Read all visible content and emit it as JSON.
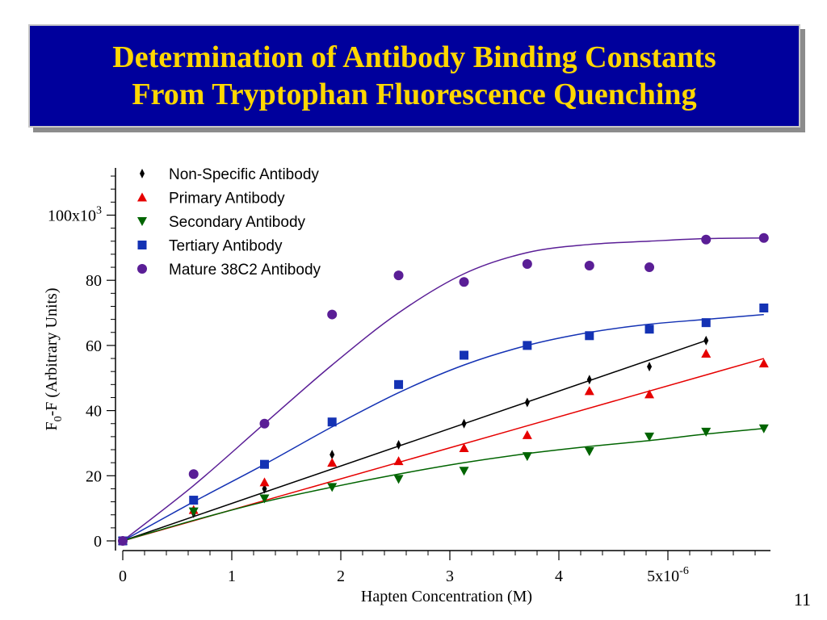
{
  "title": {
    "line1": "Determination of Antibody Binding Constants",
    "line2": "From Tryptophan Fluorescence Quenching"
  },
  "page_number": "11",
  "colors": {
    "title_bg": "#00009c",
    "title_text": "#ffd700",
    "non_specific": "#000000",
    "primary": "#e60000",
    "secondary": "#006400",
    "tertiary": "#1432b4",
    "mature": "#5a1e96"
  },
  "chart_data": {
    "type": "scatter",
    "xlabel": "Hapten Concentration (M)",
    "ylabel_main": "F",
    "ylabel_sub": "0",
    "ylabel_rest": "-F (Arbitrary Units)",
    "xlim": [
      0,
      5.9
    ],
    "ylim": [
      0,
      112
    ],
    "x_ticks": [
      {
        "value": 0,
        "label": "0"
      },
      {
        "value": 1,
        "label": "1"
      },
      {
        "value": 2,
        "label": "2"
      },
      {
        "value": 3,
        "label": "3"
      },
      {
        "value": 4,
        "label": "4"
      },
      {
        "value": 5,
        "label": "5x10",
        "exp": "-6"
      }
    ],
    "y_ticks": [
      {
        "value": 0,
        "label": "0"
      },
      {
        "value": 20,
        "label": "20"
      },
      {
        "value": 40,
        "label": "40"
      },
      {
        "value": 60,
        "label": "60"
      },
      {
        "value": 80,
        "label": "80"
      },
      {
        "value": 100,
        "label": "100x10",
        "exp": "3"
      }
    ],
    "grid": false,
    "legend_position": "top-left",
    "series": [
      {
        "name": "Non-Specific Antibody",
        "marker": "diamond",
        "color": "#000000",
        "x": [
          0,
          0.65,
          1.3,
          1.92,
          2.53,
          3.13,
          3.71,
          4.28,
          4.83,
          5.35
        ],
        "y": [
          0,
          8.5,
          16,
          26.5,
          29.5,
          36,
          42.5,
          49.5,
          53.5,
          61.5
        ],
        "fit": {
          "x": [
            0,
            5.35
          ],
          "y": [
            0,
            61.5
          ]
        }
      },
      {
        "name": "Primary Antibody",
        "marker": "triangle-up",
        "color": "#e60000",
        "x": [
          0,
          0.65,
          1.3,
          1.92,
          2.53,
          3.13,
          3.71,
          4.28,
          4.83,
          5.35,
          5.88
        ],
        "y": [
          0,
          9.5,
          18,
          24,
          24.5,
          28.5,
          32.5,
          46,
          45,
          57.5,
          54.5
        ],
        "fit": {
          "x": [
            0,
            5.88
          ],
          "y": [
            0,
            56
          ]
        }
      },
      {
        "name": "Secondary Antibody",
        "marker": "triangle-down",
        "color": "#006400",
        "x": [
          0,
          0.65,
          1.3,
          1.92,
          2.53,
          3.13,
          3.71,
          4.28,
          4.83,
          5.35,
          5.88
        ],
        "y": [
          0,
          9,
          13,
          16.5,
          19,
          21.5,
          26,
          27.5,
          32,
          33.5,
          34.5
        ],
        "fit": {
          "x": [
            0,
            0.65,
            1.3,
            1.92,
            2.53,
            3.13,
            3.71,
            4.28,
            4.83,
            5.35,
            5.88
          ],
          "y": [
            0,
            6.3,
            12,
            16.5,
            20.5,
            24,
            26.8,
            29,
            30.8,
            32.8,
            34.5
          ]
        }
      },
      {
        "name": "Tertiary Antibody",
        "marker": "square",
        "color": "#1432b4",
        "x": [
          0,
          0.65,
          1.3,
          1.92,
          2.53,
          3.13,
          3.71,
          4.28,
          4.83,
          5.35,
          5.88
        ],
        "y": [
          0,
          12.5,
          23.5,
          36.5,
          48,
          57,
          60,
          63,
          65,
          67,
          71.5
        ],
        "fit": {
          "x": [
            0,
            0.65,
            1.3,
            1.92,
            2.53,
            3.13,
            3.71,
            4.28,
            4.83,
            5.35,
            5.88
          ],
          "y": [
            0,
            12,
            23.5,
            35,
            45.5,
            54,
            60,
            64,
            66.5,
            68,
            69.5
          ]
        }
      },
      {
        "name": "Mature 38C2 Antibody",
        "marker": "circle",
        "color": "#5a1e96",
        "x": [
          0,
          0.65,
          1.3,
          1.92,
          2.53,
          3.13,
          3.71,
          4.28,
          4.83,
          5.35,
          5.88
        ],
        "y": [
          0,
          20.5,
          36,
          69.5,
          81.5,
          79.5,
          85,
          84.5,
          84,
          92.5,
          93
        ],
        "fit": {
          "x": [
            0,
            0.65,
            1.3,
            1.92,
            2.53,
            3.13,
            3.71,
            4.28,
            4.83,
            5.35,
            5.88
          ],
          "y": [
            0,
            17,
            36,
            54,
            70,
            82,
            88.5,
            91,
            92,
            92.8,
            93
          ]
        }
      }
    ]
  }
}
